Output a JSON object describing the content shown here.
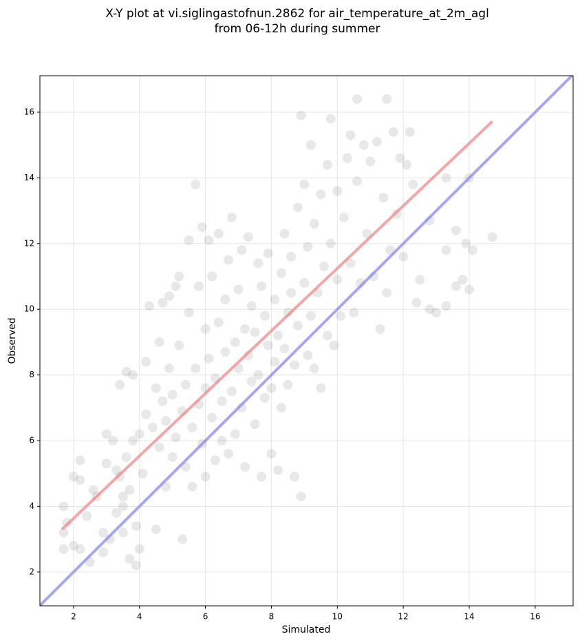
{
  "chart_data": {
    "type": "scatter",
    "title": [
      "X-Y plot at vi.siglingastofnun.2862 for air_temperature_at_2m_agl",
      "from 06-12h during summer"
    ],
    "x_label": "Simulated",
    "y_label": "Observed",
    "xlim": [
      0.98,
      17.15
    ],
    "ylim": [
      0.97,
      17.11
    ],
    "xticks": [
      2,
      4,
      6,
      8,
      10,
      12,
      14,
      16
    ],
    "yticks": [
      2,
      4,
      6,
      8,
      10,
      12,
      14,
      16
    ],
    "grid": true,
    "series": [
      {
        "type": "scatter",
        "color": "#000000",
        "opacity": 0.09,
        "x": [
          1.7,
          1.7,
          1.8,
          1.7,
          2.0,
          2.0,
          2.2,
          2.2,
          2.2,
          2.4,
          2.5,
          2.6,
          2.7,
          2.9,
          2.9,
          3.0,
          3.0,
          3.1,
          3.2,
          3.3,
          3.4,
          3.5,
          3.5,
          3.6,
          3.7,
          3.7,
          3.8,
          3.9,
          3.9,
          4.0,
          3.6,
          3.4,
          3.8,
          3.5,
          3.3,
          4.0,
          4.1,
          4.2,
          4.2,
          4.3,
          4.4,
          4.5,
          4.5,
          4.6,
          4.6,
          4.7,
          4.7,
          4.8,
          4.8,
          4.9,
          4.9,
          5.0,
          5.0,
          5.1,
          5.1,
          5.2,
          5.2,
          5.3,
          5.3,
          5.4,
          5.4,
          5.5,
          5.5,
          5.6,
          5.6,
          5.7,
          5.7,
          5.8,
          5.8,
          5.9,
          5.9,
          6.0,
          6.0,
          6.0,
          6.1,
          6.1,
          6.2,
          6.2,
          6.3,
          6.3,
          6.4,
          6.4,
          6.5,
          6.5,
          6.6,
          6.6,
          6.7,
          6.7,
          6.8,
          6.8,
          6.9,
          6.9,
          7.0,
          7.0,
          7.1,
          7.1,
          7.2,
          7.2,
          7.3,
          7.3,
          7.4,
          7.4,
          7.5,
          7.5,
          7.6,
          7.6,
          7.7,
          7.7,
          7.8,
          7.8,
          7.9,
          7.9,
          8.0,
          8.0,
          8.1,
          8.1,
          8.2,
          8.2,
          8.3,
          8.3,
          8.4,
          8.4,
          8.5,
          8.5,
          8.6,
          8.6,
          8.7,
          8.7,
          8.8,
          8.8,
          8.9,
          8.9,
          9.0,
          9.0,
          9.1,
          9.1,
          9.2,
          9.2,
          9.3,
          9.3,
          9.4,
          9.5,
          9.5,
          9.6,
          9.7,
          9.7,
          9.8,
          9.8,
          9.9,
          10.0,
          10.0,
          10.1,
          10.2,
          10.3,
          10.4,
          10.4,
          10.5,
          10.6,
          10.6,
          10.7,
          10.8,
          10.9,
          11.0,
          11.1,
          11.2,
          11.3,
          11.4,
          11.5,
          11.5,
          11.6,
          11.7,
          11.8,
          11.9,
          12.0,
          12.1,
          12.2,
          12.3,
          12.4,
          12.5,
          12.8,
          12.8,
          13.0,
          13.3,
          13.3,
          13.3,
          13.6,
          13.6,
          13.8,
          13.9,
          14.0,
          14.0,
          14.1,
          14.7
        ],
        "y": [
          2.7,
          3.2,
          3.5,
          4.0,
          2.8,
          4.9,
          2.7,
          4.8,
          5.4,
          3.7,
          2.3,
          4.5,
          4.3,
          2.6,
          3.2,
          6.2,
          5.3,
          3.0,
          6.0,
          3.8,
          4.9,
          4.3,
          3.2,
          5.5,
          2.4,
          4.5,
          6.0,
          2.2,
          3.4,
          2.7,
          8.1,
          7.7,
          8.0,
          4.0,
          5.1,
          6.2,
          5.0,
          6.8,
          8.4,
          10.1,
          6.4,
          7.6,
          3.3,
          5.8,
          9.0,
          10.2,
          7.2,
          6.6,
          4.6,
          10.4,
          8.2,
          5.5,
          7.4,
          6.1,
          10.7,
          11.0,
          8.9,
          6.9,
          3.0,
          7.7,
          5.2,
          9.9,
          12.1,
          6.4,
          4.6,
          13.8,
          8.2,
          7.1,
          10.7,
          12.5,
          5.9,
          7.6,
          9.4,
          4.9,
          12.1,
          8.5,
          6.7,
          11.0,
          7.9,
          5.4,
          9.6,
          12.3,
          7.2,
          6.0,
          8.7,
          10.3,
          5.6,
          11.5,
          12.8,
          7.5,
          9.0,
          6.2,
          8.2,
          10.6,
          7.0,
          11.8,
          9.4,
          5.2,
          8.6,
          12.2,
          7.8,
          10.1,
          6.5,
          9.3,
          11.4,
          8.0,
          4.9,
          10.7,
          7.3,
          9.8,
          8.9,
          11.7,
          5.6,
          7.6,
          10.3,
          8.4,
          5.1,
          9.2,
          11.1,
          7.0,
          12.3,
          8.8,
          9.9,
          7.7,
          11.6,
          10.5,
          4.9,
          8.3,
          13.1,
          9.5,
          15.9,
          4.3,
          10.8,
          13.8,
          8.6,
          11.9,
          15.0,
          9.8,
          12.6,
          8.2,
          10.5,
          13.5,
          7.6,
          11.3,
          14.4,
          9.2,
          15.8,
          12.0,
          8.9,
          13.6,
          10.9,
          9.8,
          12.8,
          14.6,
          11.4,
          15.3,
          9.9,
          16.4,
          13.9,
          10.8,
          15.0,
          12.3,
          14.5,
          11.0,
          15.1,
          9.4,
          13.4,
          16.4,
          10.5,
          11.8,
          15.4,
          12.9,
          14.6,
          11.6,
          14.4,
          15.4,
          13.8,
          10.2,
          10.9,
          10.0,
          12.7,
          9.9,
          10.1,
          14.0,
          11.8,
          10.7,
          12.4,
          10.9,
          12.0,
          10.6,
          14.0,
          11.8,
          12.2
        ]
      },
      {
        "type": "line",
        "color": "#f08080",
        "opacity": 0.7,
        "x": [
          1.65,
          14.7
        ],
        "y": [
          3.3,
          15.72
        ]
      },
      {
        "type": "line",
        "color": "#8080f0",
        "opacity": 0.7,
        "x": [
          0.98,
          17.15
        ],
        "y": [
          0.98,
          17.15
        ]
      }
    ]
  }
}
